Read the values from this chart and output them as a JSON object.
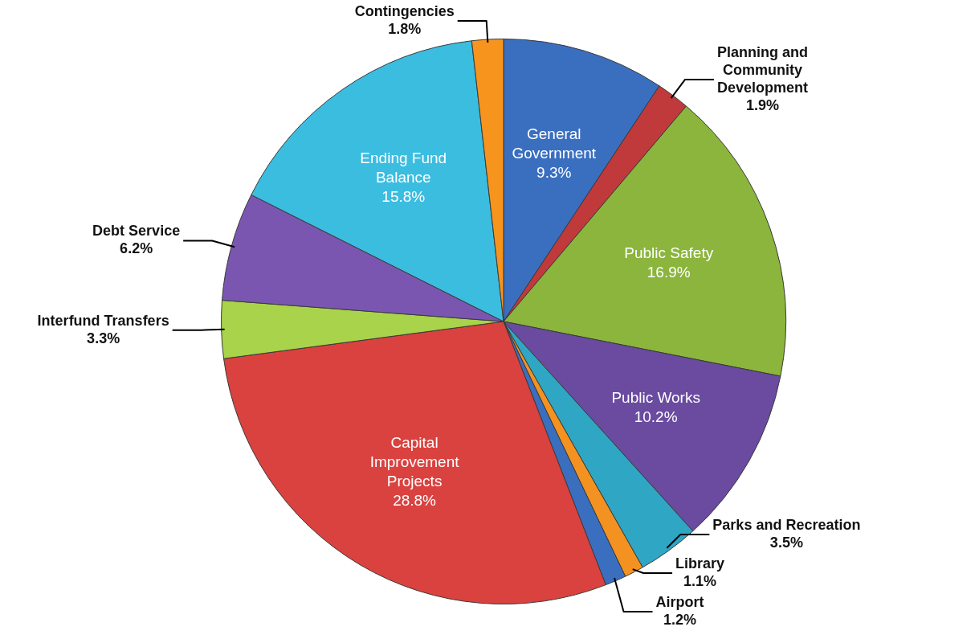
{
  "chart_data": {
    "type": "pie",
    "categories": [
      "General Government",
      "Planning and Community Development",
      "Public Safety",
      "Public Works",
      "Parks and Recreation",
      "Library",
      "Airport",
      "Capital Improvement Projects",
      "Interfund Transfers",
      "Debt Service",
      "Ending Fund Balance",
      "Contingencies"
    ],
    "values": [
      9.3,
      1.9,
      16.9,
      10.2,
      3.5,
      1.1,
      1.2,
      28.8,
      3.3,
      6.2,
      15.8,
      1.8
    ],
    "colors": [
      "#3a6fc0",
      "#c0393b",
      "#8bb53c",
      "#6a4ba0",
      "#2fa6c4",
      "#f39220",
      "#3a6fc0",
      "#d9423f",
      "#a8d34a",
      "#7a56b0",
      "#3bbde0",
      "#f7941d"
    ],
    "value_labels": [
      "9.3%",
      "1.9%",
      "16.9%",
      "10.2%",
      "3.5%",
      "1.1%",
      "1.2%",
      "28.8%",
      "3.3%",
      "6.2%",
      "15.8%",
      "1.8%"
    ],
    "legend": false
  }
}
